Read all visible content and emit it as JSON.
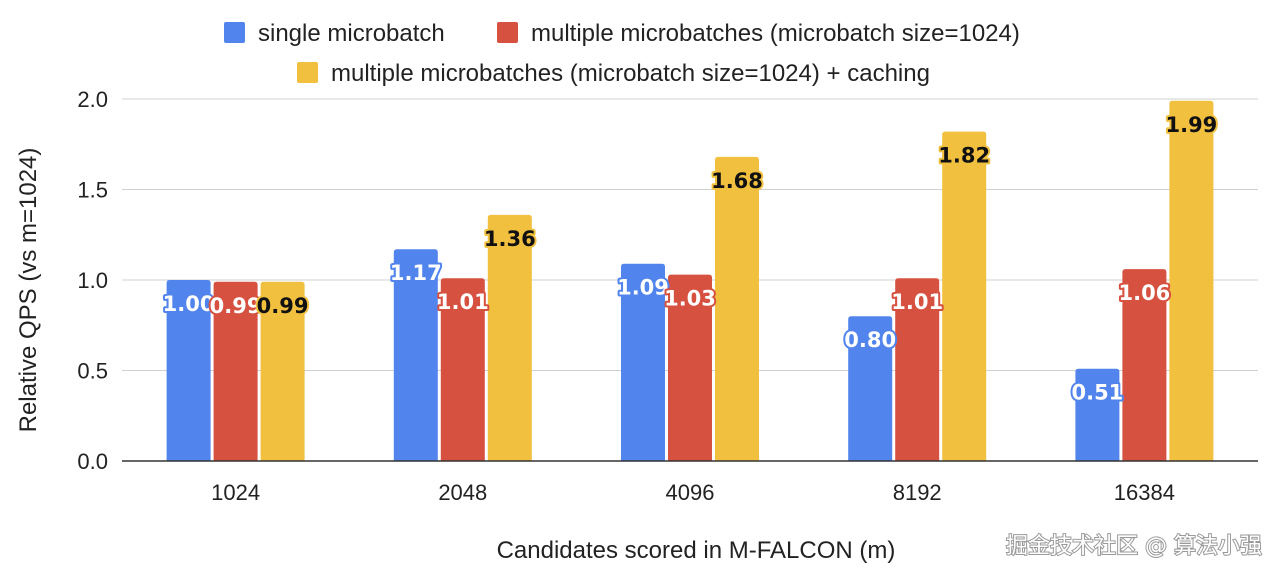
{
  "chart_data": {
    "type": "bar",
    "xlabel": "Candidates scored in M-FALCON (m)",
    "ylabel": "Relative QPS (vs m=1024)",
    "categories": [
      "1024",
      "2048",
      "4096",
      "8192",
      "16384"
    ],
    "ylim": [
      0,
      2.0
    ],
    "yticks": [
      "0.0",
      "0.5",
      "1.0",
      "1.5",
      "2.0"
    ],
    "grid": true,
    "legend_position": "top",
    "series": [
      {
        "name": "single microbatch",
        "color": "#5184ec",
        "values": [
          1.0,
          1.17,
          1.09,
          0.8,
          0.51
        ],
        "labels": [
          "1.00",
          "1.17",
          "1.09",
          "0.80",
          "0.51"
        ],
        "label_color": "#ffffff"
      },
      {
        "name": "multiple microbatches (microbatch size=1024)",
        "color": "#d65140",
        "values": [
          0.99,
          1.01,
          1.03,
          1.01,
          1.06
        ],
        "labels": [
          "0.99",
          "1.01",
          "1.03",
          "1.01",
          "1.06"
        ],
        "label_color": "#ffffff"
      },
      {
        "name": "multiple microbatches (microbatch size=1024) + caching",
        "color": "#f1c03f",
        "values": [
          0.99,
          1.36,
          1.68,
          1.82,
          1.99
        ],
        "labels": [
          "0.99",
          "1.36",
          "1.68",
          "1.82",
          "1.99"
        ],
        "label_color": "#111111"
      }
    ]
  },
  "watermark": "掘金技术社区 @ 算法小强"
}
